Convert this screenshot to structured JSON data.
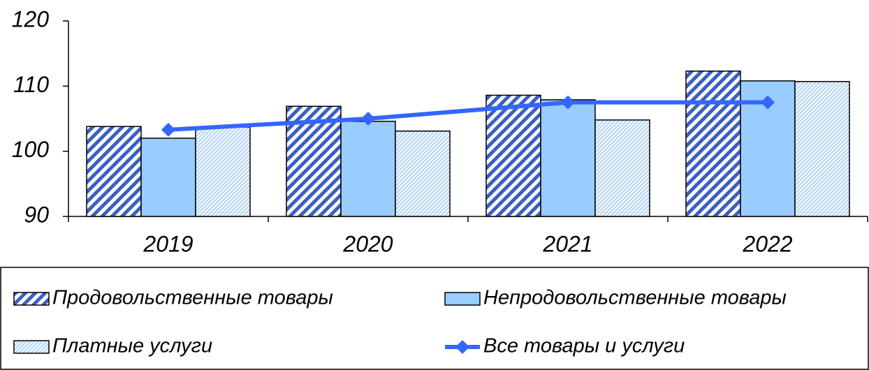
{
  "chart_data": {
    "type": "bar",
    "categories": [
      "2019",
      "2020",
      "2021",
      "2022"
    ],
    "series": [
      {
        "name": "Продовольственные товары",
        "type": "bar",
        "pattern": "diagonal",
        "color": "#3a5fc4",
        "values": [
          103.8,
          106.9,
          108.6,
          112.3
        ]
      },
      {
        "name": "Непродовольственные товары",
        "type": "bar",
        "pattern": "solid",
        "color": "#99ccff",
        "values": [
          102.0,
          104.6,
          107.9,
          110.8
        ]
      },
      {
        "name": "Платные услуги",
        "type": "bar",
        "pattern": "hatch",
        "color": "#a9cdf0",
        "values": [
          103.7,
          103.1,
          104.8,
          110.7
        ]
      },
      {
        "name": "Все товары и услуги",
        "type": "line",
        "color": "#3366ff",
        "values": [
          103.3,
          105.0,
          107.5,
          107.5
        ]
      }
    ],
    "ylim": [
      90,
      120
    ],
    "yticks": [
      90,
      100,
      110,
      120
    ],
    "grid": false,
    "legend": "bottom"
  }
}
